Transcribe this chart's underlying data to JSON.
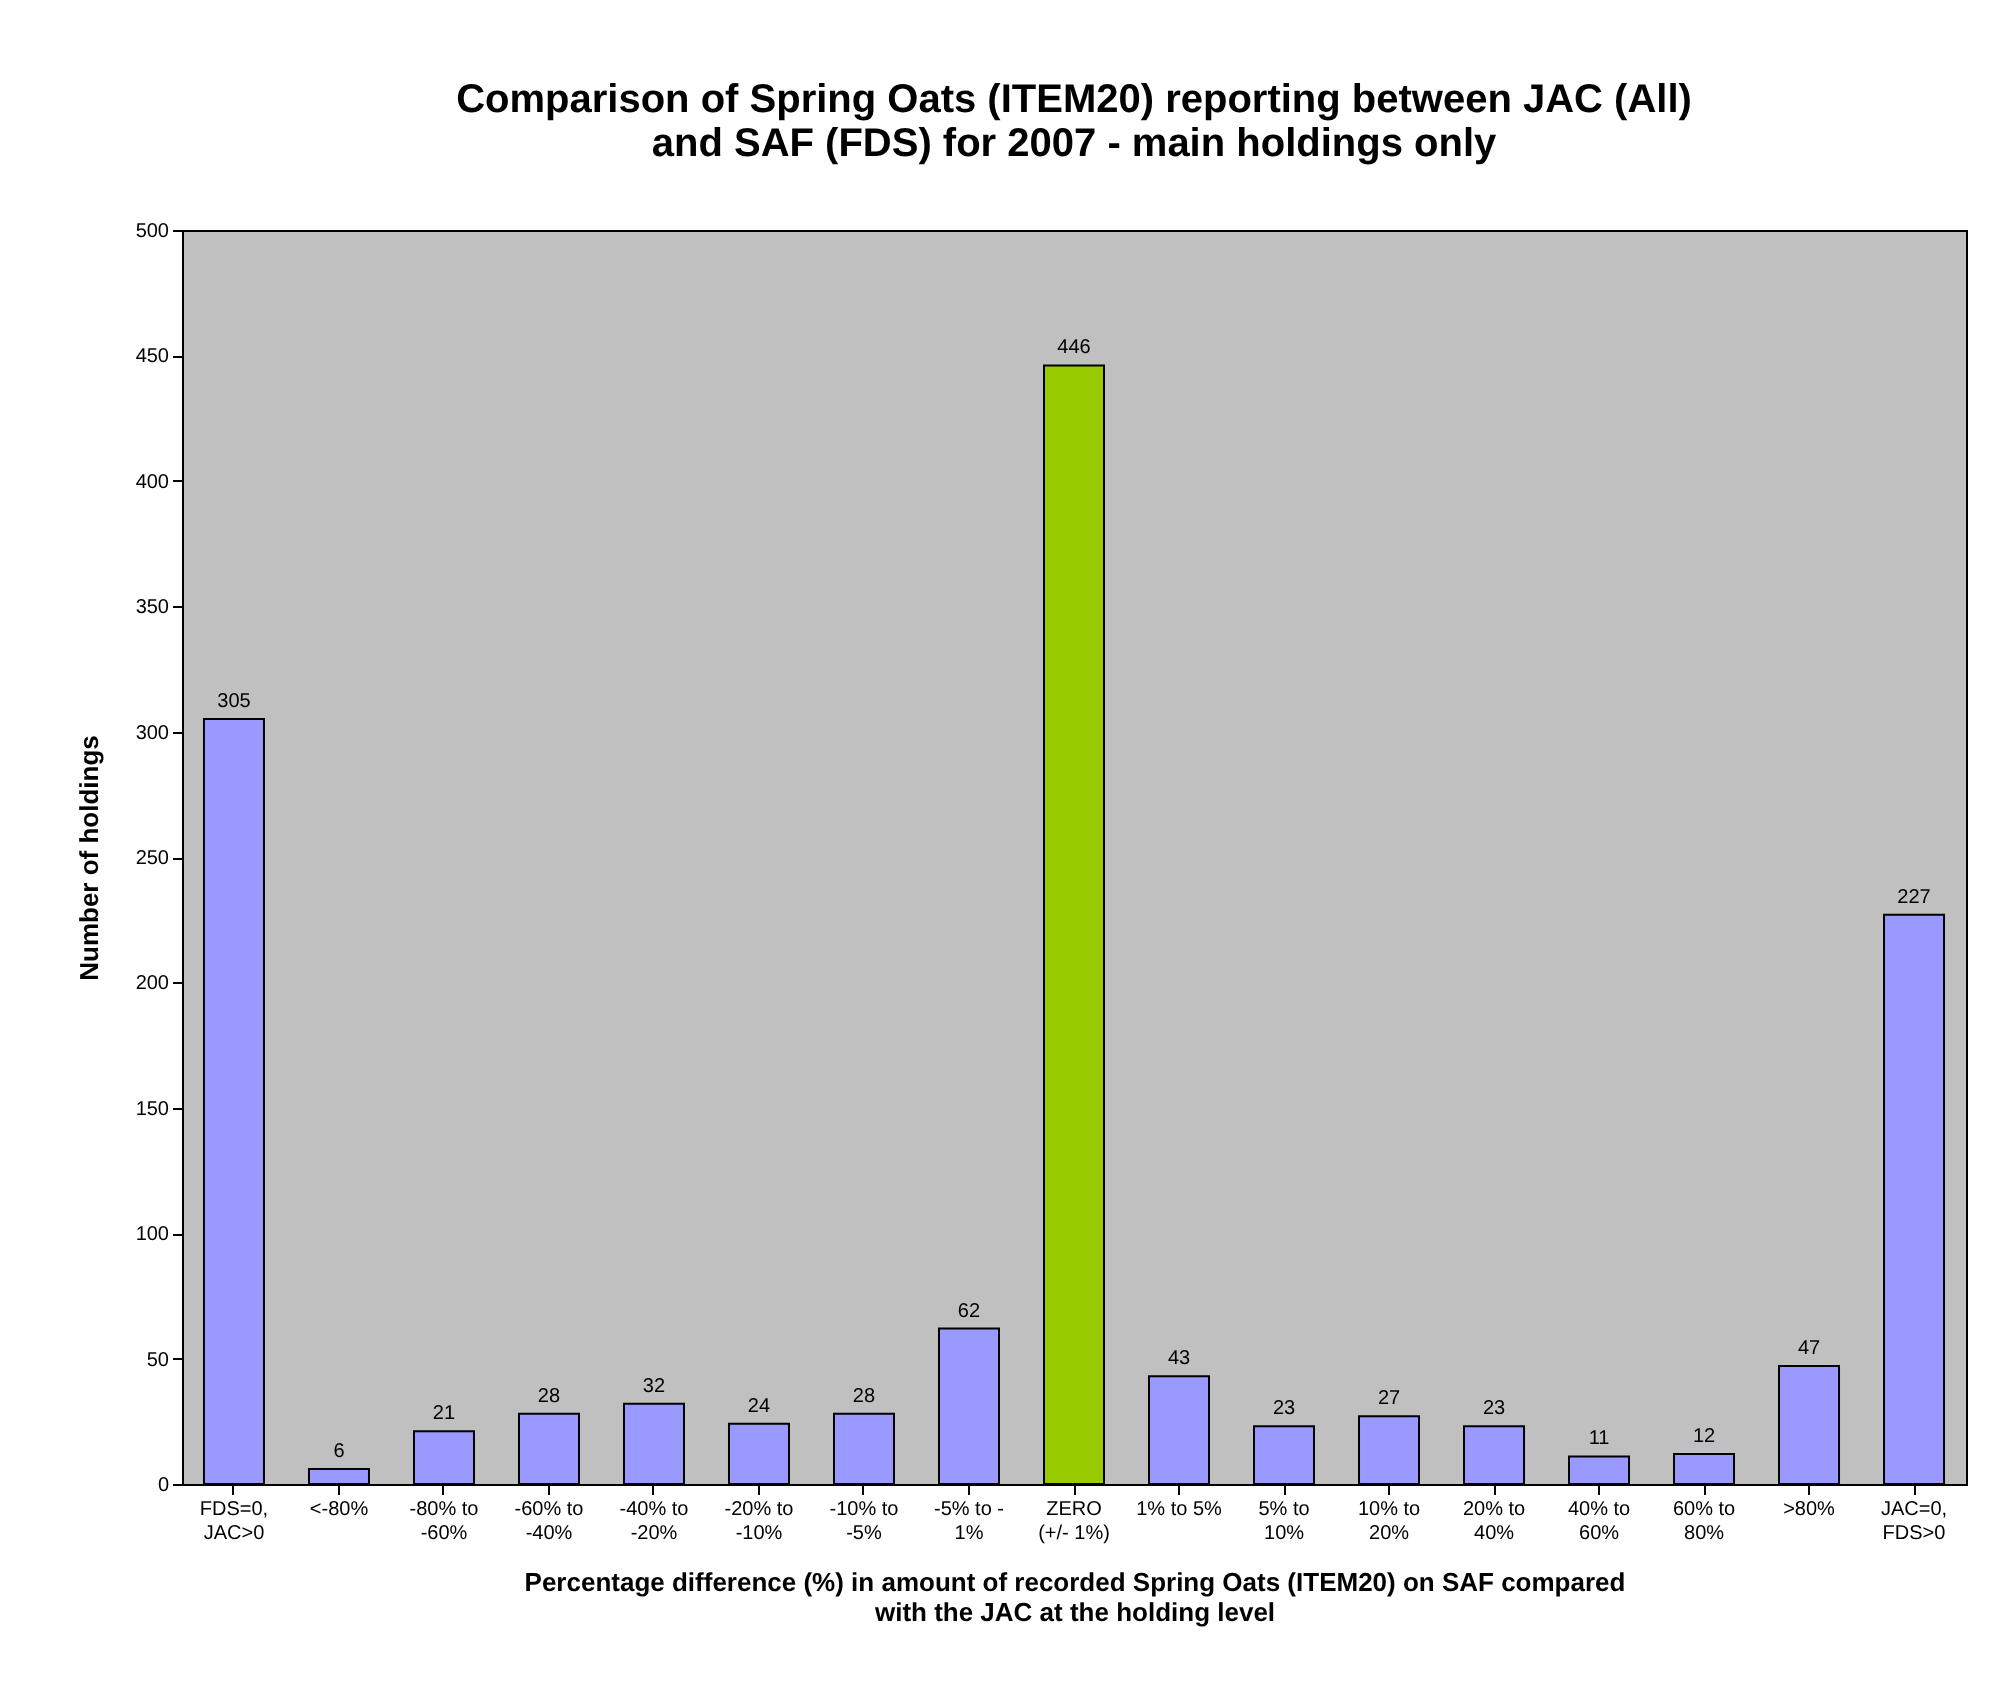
{
  "chart_data": {
    "type": "bar",
    "title": "Comparison of Spring Oats (ITEM20) reporting between JAC (All) and SAF (FDS) for 2007 - main holdings only",
    "xlabel": "Percentage difference (%) in amount of recorded Spring Oats (ITEM20) on SAF compared with the JAC at the holding level",
    "ylabel": "Number of holdings",
    "categories": [
      "FDS=0, JAC>0",
      "<-80%",
      "-80% to -60%",
      "-60% to -40%",
      "-40% to -20%",
      "-20% to -10%",
      "-10% to -5%",
      "-5% to - 1%",
      "ZERO (+/- 1%)",
      "1% to 5%",
      "5% to 10%",
      "10% to 20%",
      "20% to 40%",
      "40% to 60%",
      "60% to 80%",
      ">80%",
      "JAC=0, FDS>0"
    ],
    "values": [
      305,
      6,
      21,
      28,
      32,
      24,
      28,
      62,
      446,
      43,
      23,
      27,
      23,
      11,
      12,
      47,
      227
    ],
    "colors": [
      "#9999ff",
      "#9999ff",
      "#9999ff",
      "#9999ff",
      "#9999ff",
      "#9999ff",
      "#9999ff",
      "#9999ff",
      "#99cc00",
      "#9999ff",
      "#9999ff",
      "#9999ff",
      "#9999ff",
      "#9999ff",
      "#9999ff",
      "#9999ff",
      "#9999ff"
    ],
    "ylim": [
      0,
      500
    ],
    "yticks": [
      0,
      50,
      100,
      150,
      200,
      250,
      300,
      350,
      400,
      450,
      500
    ],
    "data_labels": true,
    "grid": false
  }
}
